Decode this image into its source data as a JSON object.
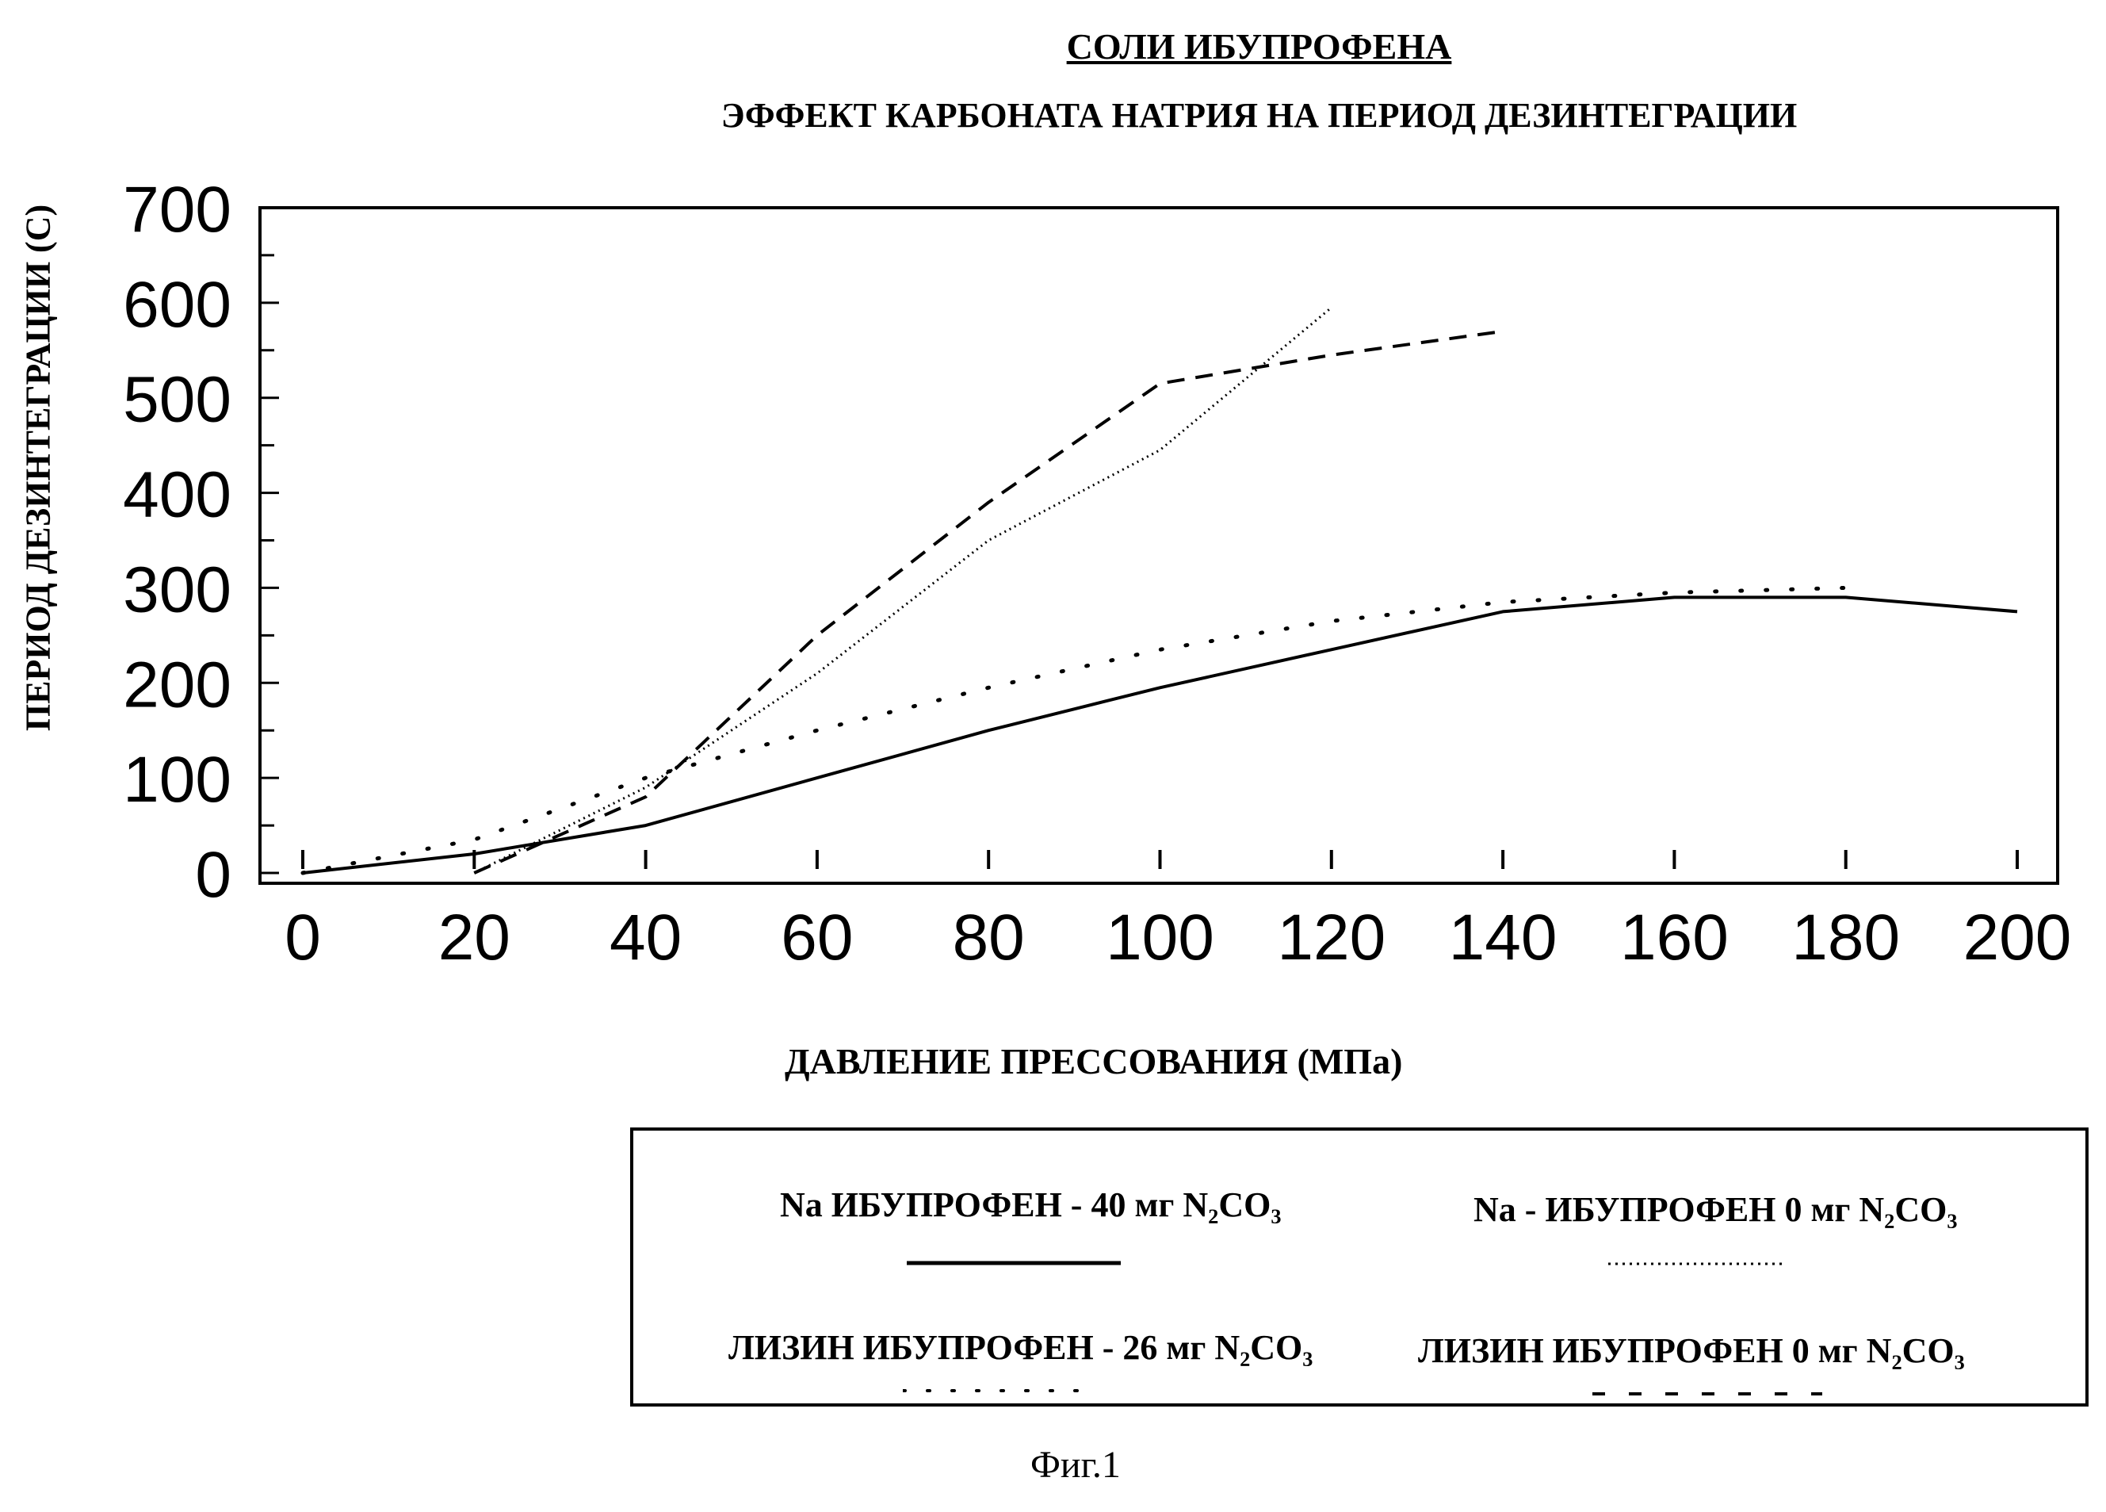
{
  "chart_data": {
    "type": "line",
    "title": "СОЛИ ИБУПРОФЕНА",
    "subtitle": "ЭФФЕКТ КАРБОНАТА НАТРИЯ НА ПЕРИОД ДЕЗИНТЕГРАЦИИ",
    "xlabel": "ДАВЛЕНИЕ  ПРЕССОВАНИЯ (МПа)",
    "ylabel": "ПЕРИОД ДЕЗИНТЕГРАЦИИ (С)",
    "xlim": [
      0,
      200
    ],
    "ylim": [
      0,
      700
    ],
    "xticks": [
      "0",
      "20",
      "40",
      "60",
      "80",
      "100",
      "120",
      "140",
      "160",
      "180",
      "200"
    ],
    "yticks": [
      "0",
      "100",
      "200",
      "300",
      "400",
      "500",
      "600",
      "700"
    ],
    "grid": false,
    "legend_position": "bottom-right",
    "series": [
      {
        "name": "Na  ИБУПРОФЕН - 40 мг N₂CO₃",
        "style": "solid",
        "x": [
          0,
          20,
          40,
          60,
          80,
          100,
          120,
          140,
          160,
          180,
          200
        ],
        "y": [
          0,
          20,
          50,
          100,
          150,
          195,
          235,
          275,
          290,
          290,
          275
        ]
      },
      {
        "name": "Na - ИБУПРОФЕН 0 мг N₂CO₃",
        "style": "dense-dotted",
        "x": [
          20,
          40,
          60,
          80,
          100,
          120
        ],
        "y": [
          0,
          90,
          210,
          350,
          445,
          595
        ]
      },
      {
        "name": "ЛИЗИН ИБУПРОФЕН - 26 мг N₂CO₃",
        "style": "sparse-dotted",
        "x": [
          0,
          20,
          40,
          60,
          80,
          100,
          120,
          140,
          160,
          180
        ],
        "y": [
          0,
          35,
          100,
          150,
          195,
          235,
          265,
          285,
          295,
          300
        ]
      },
      {
        "name": "ЛИЗИН ИБУПРОФЕН 0 мг N₂CO₃",
        "style": "dashed",
        "x": [
          20,
          40,
          60,
          80,
          100,
          120,
          140
        ],
        "y": [
          0,
          80,
          250,
          390,
          515,
          545,
          570
        ]
      }
    ]
  },
  "legend": {
    "item1": "Na  ИБУПРОФЕН - 40 мг N₂CO₃",
    "item2": "Na - ИБУПРОФЕН 0 мг N₂CO₃",
    "item3": "ЛИЗИН ИБУПРОФЕН - 26 мг N₂CO₃",
    "item4": "ЛИЗИН ИБУПРОФЕН 0 мг N₂CO₃"
  },
  "caption": "Фиг.1"
}
